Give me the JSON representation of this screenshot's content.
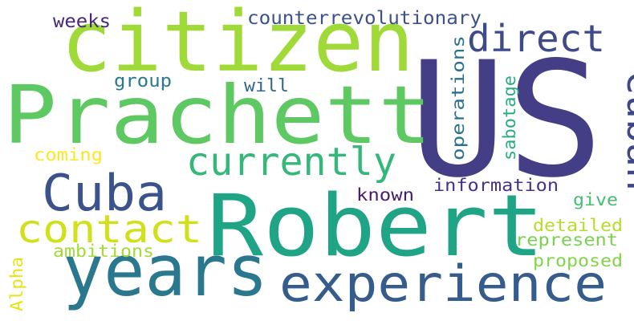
{
  "words": [
    {
      "text": "US",
      "color": "#433e85"
    },
    {
      "text": "citizen",
      "color": "#a0da39"
    },
    {
      "text": "Prachett",
      "color": "#5ec962"
    },
    {
      "text": "Robert",
      "color": "#20a486"
    },
    {
      "text": "years",
      "color": "#2a788e"
    },
    {
      "text": "experience",
      "color": "#365c8d"
    },
    {
      "text": "Cuba",
      "color": "#3b528b"
    },
    {
      "text": "currently",
      "color": "#35b779"
    },
    {
      "text": "contact",
      "color": "#d0e11c"
    },
    {
      "text": "direct",
      "color": "#3e4a89"
    },
    {
      "text": "Cuban",
      "color": "#3f4788"
    },
    {
      "text": "counterrevolutionary",
      "color": "#3b528b"
    },
    {
      "text": "weeks",
      "color": "#482878"
    },
    {
      "text": "group",
      "color": "#2a788e"
    },
    {
      "text": "will",
      "color": "#31688e"
    },
    {
      "text": "coming",
      "color": "#fde725"
    },
    {
      "text": "known",
      "color": "#481c6e"
    },
    {
      "text": "information",
      "color": "#46337f"
    },
    {
      "text": "give",
      "color": "#44bf70"
    },
    {
      "text": "detailed",
      "color": "#b5de2b"
    },
    {
      "text": "represent",
      "color": "#7ad151"
    },
    {
      "text": "proposed",
      "color": "#84d44b"
    },
    {
      "text": "ambitions",
      "color": "#a2da37"
    },
    {
      "text": "operations",
      "color": "#2c728e"
    },
    {
      "text": "sabotage",
      "color": "#27ad81"
    },
    {
      "text": "Alpha",
      "color": "#e5e419"
    }
  ]
}
